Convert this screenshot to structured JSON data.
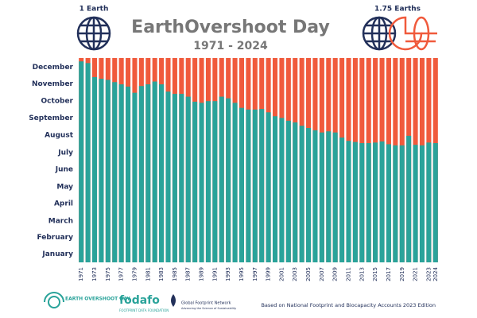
{
  "chart_data": {
    "type": "bar",
    "title": "EarthOvershoot Day",
    "subtitle": "1971 - 2024",
    "earth_labels": [
      "1 Earth",
      "1.75 Earths"
    ],
    "logos": [
      "EARTH OVERSHOOT DAY",
      "fodafo",
      "FOOTPRINT DATA FOUNDATION",
      "Global Footprint Network",
      "Advancing the Science of Sustainability"
    ],
    "source": "Based on National Footprint and Biocapacity Accounts 2023 Edition",
    "categories": [
      "1971",
      null,
      "1973",
      null,
      "1975",
      null,
      "1977",
      null,
      "1979",
      null,
      "1981",
      null,
      "1983",
      null,
      "1985",
      null,
      "1987",
      null,
      "1989",
      null,
      "1991",
      null,
      "1993",
      null,
      "1995",
      null,
      "1997",
      null,
      "1999",
      null,
      "2001",
      null,
      "2003",
      null,
      "2005",
      null,
      "2007",
      null,
      "2009",
      null,
      "2011",
      null,
      "2013",
      null,
      "2015",
      null,
      "2017",
      null,
      "2019",
      null,
      "2021",
      null,
      "2023",
      "2024"
    ],
    "values": [
      359,
      356,
      331,
      328,
      326,
      322,
      318,
      314,
      303,
      315,
      318,
      323,
      318,
      305,
      301,
      301,
      296,
      287,
      285,
      288,
      288,
      296,
      293,
      285,
      276,
      273,
      273,
      274,
      268,
      261,
      258,
      253,
      250,
      244,
      240,
      236,
      232,
      234,
      232,
      223,
      217,
      215,
      213,
      213,
      214,
      216,
      211,
      209,
      209,
      226,
      210,
      209,
      214,
      213
    ],
    "color": "#2aa39a",
    "background_color": "#f05a3c",
    "ylim": [
      0,
      365
    ],
    "yticks": [
      {
        "value": 15,
        "label": "January"
      },
      {
        "value": 45,
        "label": "February"
      },
      {
        "value": 74,
        "label": "March"
      },
      {
        "value": 105,
        "label": "April"
      },
      {
        "value": 135,
        "label": "May"
      },
      {
        "value": 166,
        "label": "June"
      },
      {
        "value": 196,
        "label": "July"
      },
      {
        "value": 227,
        "label": "August"
      },
      {
        "value": 258,
        "label": "September"
      },
      {
        "value": 288,
        "label": "October"
      },
      {
        "value": 319,
        "label": "November"
      },
      {
        "value": 349,
        "label": "December"
      }
    ],
    "grid": false
  }
}
